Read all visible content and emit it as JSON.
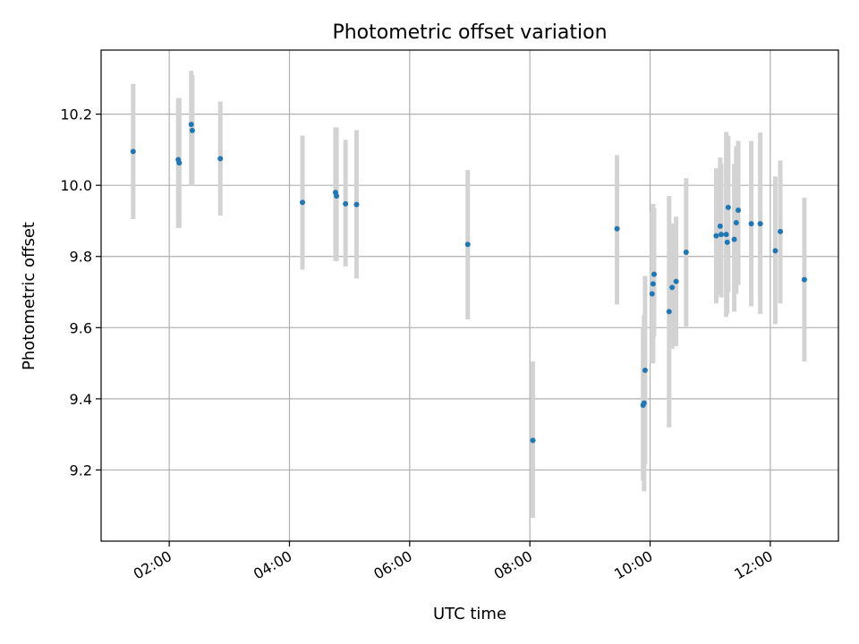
{
  "chart_data": {
    "type": "scatter",
    "title": "Photometric offset variation",
    "xlabel": "UTC time",
    "ylabel": "Photometric offset",
    "xlim": [
      "00:52",
      "13:08"
    ],
    "ylim": [
      9.0,
      10.38
    ],
    "x_ticks": [
      "02:00",
      "04:00",
      "06:00",
      "08:00",
      "10:00",
      "12:00"
    ],
    "y_ticks": [
      9.2,
      9.4,
      9.6,
      9.8,
      10.0,
      10.2
    ],
    "grid": true,
    "colors": {
      "points": "#1f77b4",
      "errorbars": "#d3d3d3"
    },
    "series": [
      {
        "points": [
          {
            "x": "01:24",
            "y": 10.095,
            "lo": 9.905,
            "hi": 10.285
          },
          {
            "x": "02:09",
            "y": 10.072,
            "lo": 9.88,
            "hi": 10.245
          },
          {
            "x": "02:10",
            "y": 10.063,
            "lo": 9.88,
            "hi": 10.245
          },
          {
            "x": "02:22",
            "y": 10.171,
            "lo": 10.0,
            "hi": 10.322
          },
          {
            "x": "02:23",
            "y": 10.154,
            "lo": 9.998,
            "hi": 10.31
          },
          {
            "x": "02:51",
            "y": 10.075,
            "lo": 9.915,
            "hi": 10.235
          },
          {
            "x": "04:13",
            "y": 9.952,
            "lo": 9.763,
            "hi": 10.14
          },
          {
            "x": "04:46",
            "y": 9.98,
            "lo": 9.787,
            "hi": 10.163
          },
          {
            "x": "04:47",
            "y": 9.97,
            "lo": 9.787,
            "hi": 10.163
          },
          {
            "x": "04:56",
            "y": 9.948,
            "lo": 9.772,
            "hi": 10.128
          },
          {
            "x": "05:07",
            "y": 9.946,
            "lo": 9.738,
            "hi": 10.155
          },
          {
            "x": "06:58",
            "y": 9.834,
            "lo": 9.623,
            "hi": 10.043
          },
          {
            "x": "08:03",
            "y": 9.283,
            "lo": 9.065,
            "hi": 9.505
          },
          {
            "x": "09:27",
            "y": 9.878,
            "lo": 9.665,
            "hi": 10.085
          },
          {
            "x": "09:53",
            "y": 9.382,
            "lo": 9.17,
            "hi": 9.6
          },
          {
            "x": "09:54",
            "y": 9.388,
            "lo": 9.14,
            "hi": 9.635
          },
          {
            "x": "09:55",
            "y": 9.48,
            "lo": 9.215,
            "hi": 9.745
          },
          {
            "x": "10:02",
            "y": 9.695,
            "lo": 9.5,
            "hi": 9.925
          },
          {
            "x": "10:03",
            "y": 9.723,
            "lo": 9.5,
            "hi": 9.948
          },
          {
            "x": "10:04",
            "y": 9.75,
            "lo": 9.575,
            "hi": 9.935
          },
          {
            "x": "10:19",
            "y": 9.645,
            "lo": 9.32,
            "hi": 9.97
          },
          {
            "x": "10:22",
            "y": 9.713,
            "lo": 9.54,
            "hi": 9.893
          },
          {
            "x": "10:26",
            "y": 9.73,
            "lo": 9.548,
            "hi": 9.912
          },
          {
            "x": "10:36",
            "y": 9.812,
            "lo": 9.603,
            "hi": 10.02
          },
          {
            "x": "11:06",
            "y": 9.858,
            "lo": 9.668,
            "hi": 10.048
          },
          {
            "x": "11:10",
            "y": 9.885,
            "lo": 9.692,
            "hi": 10.078
          },
          {
            "x": "11:11",
            "y": 9.862,
            "lo": 9.685,
            "hi": 10.06
          },
          {
            "x": "11:16",
            "y": 9.862,
            "lo": 9.63,
            "hi": 10.15
          },
          {
            "x": "11:17",
            "y": 9.84,
            "lo": 9.64,
            "hi": 10.13
          },
          {
            "x": "11:18",
            "y": 9.938,
            "lo": 9.7,
            "hi": 10.14
          },
          {
            "x": "11:24",
            "y": 9.848,
            "lo": 9.645,
            "hi": 10.06
          },
          {
            "x": "11:26",
            "y": 9.895,
            "lo": 9.695,
            "hi": 10.11
          },
          {
            "x": "11:28",
            "y": 9.93,
            "lo": 9.72,
            "hi": 10.125
          },
          {
            "x": "11:41",
            "y": 9.892,
            "lo": 9.66,
            "hi": 10.125
          },
          {
            "x": "11:50",
            "y": 9.892,
            "lo": 9.638,
            "hi": 10.148
          },
          {
            "x": "12:05",
            "y": 9.816,
            "lo": 9.61,
            "hi": 10.025
          },
          {
            "x": "12:10",
            "y": 9.87,
            "lo": 9.668,
            "hi": 10.07
          },
          {
            "x": "12:34",
            "y": 9.735,
            "lo": 9.505,
            "hi": 9.965
          }
        ]
      }
    ]
  }
}
